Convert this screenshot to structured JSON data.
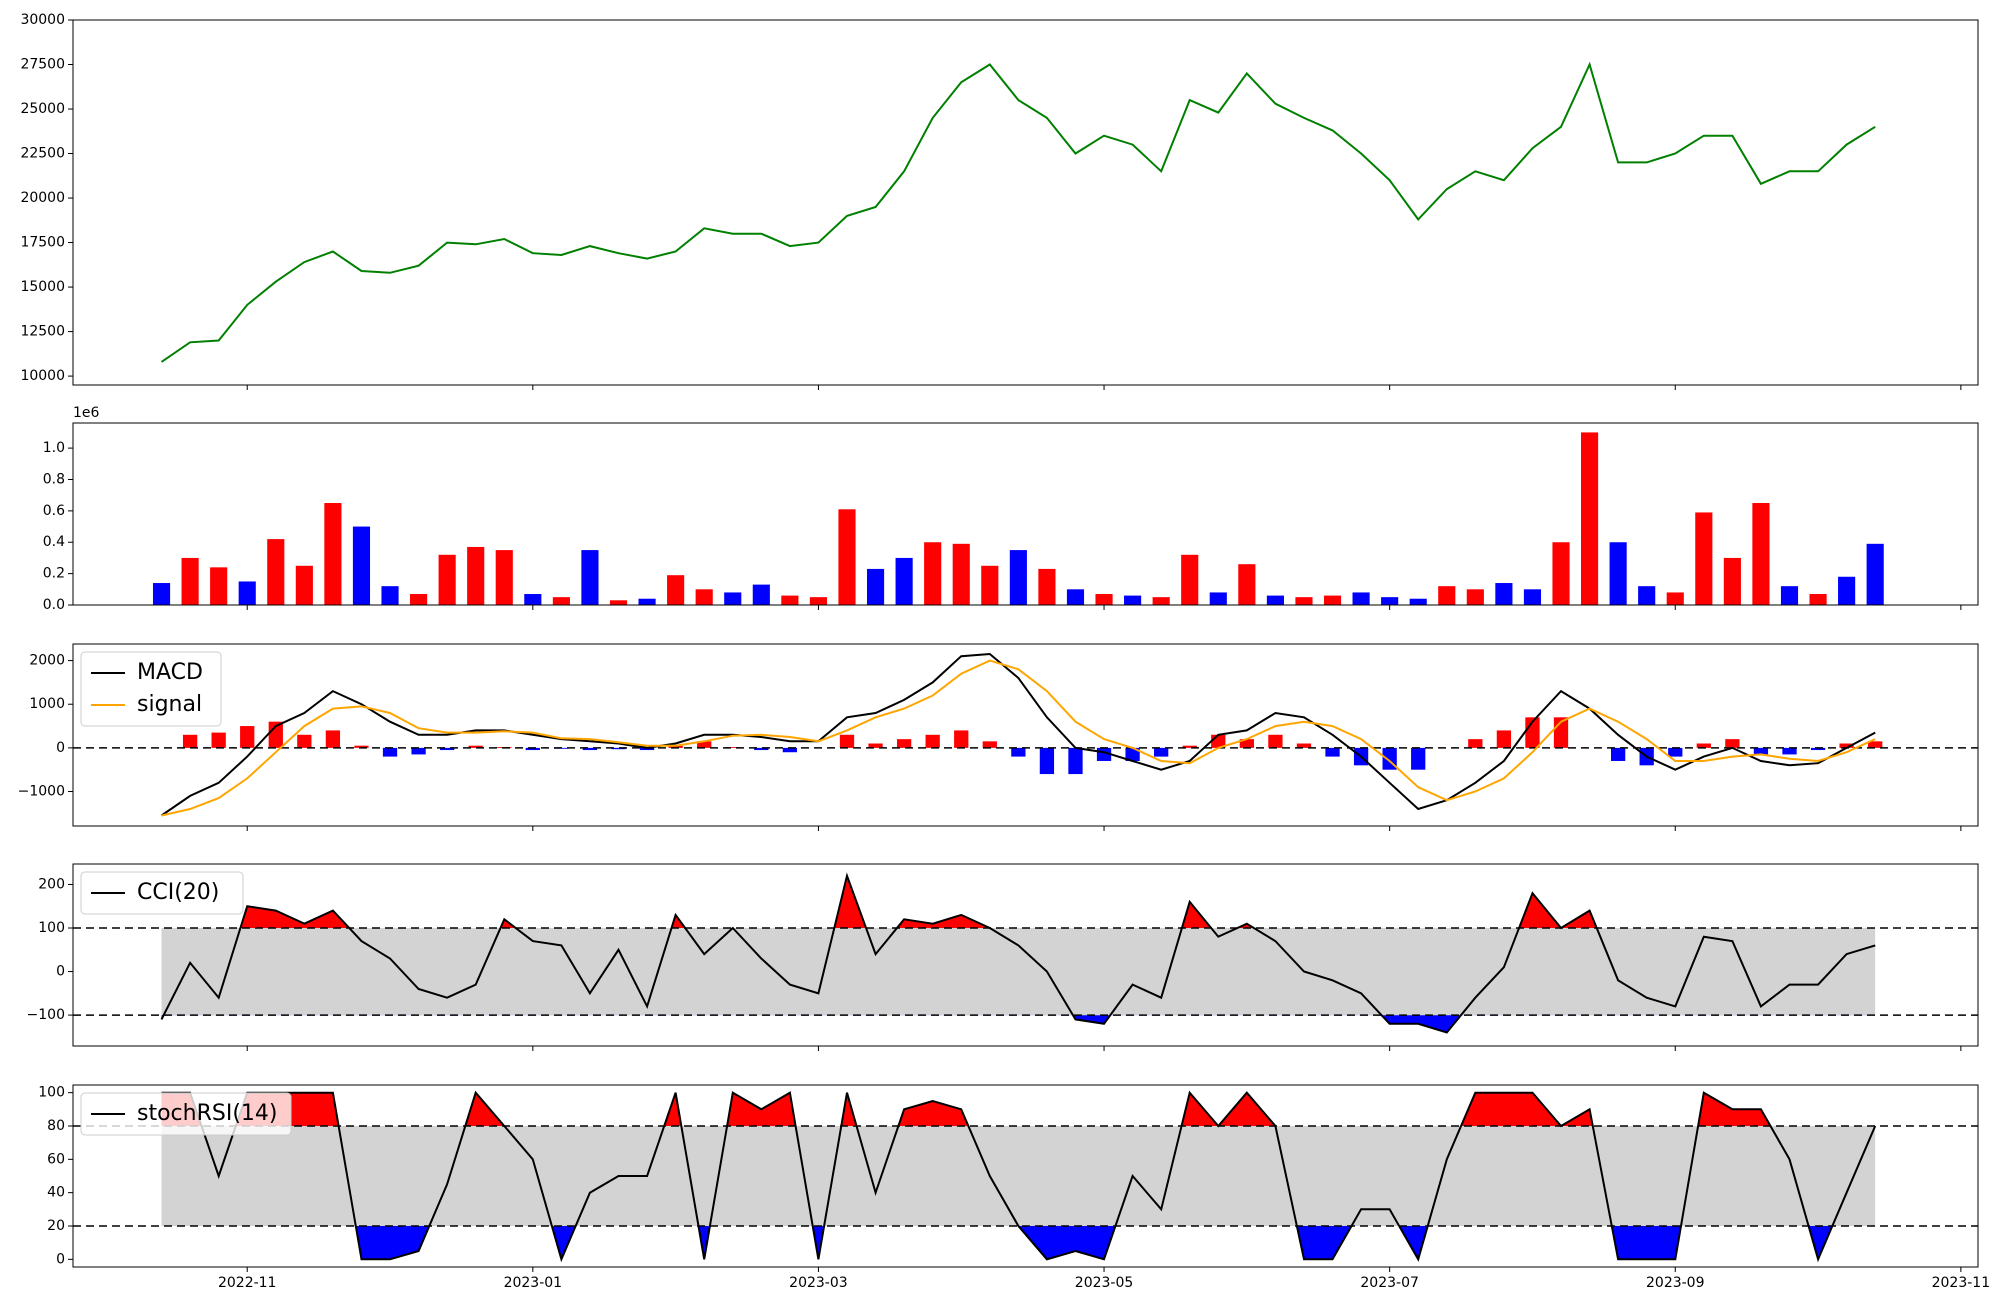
{
  "chart_data": [
    {
      "type": "line",
      "x": [
        -0.6,
        -0.4,
        -0.2,
        0,
        0.2,
        0.4,
        0.6,
        0.8,
        1,
        1.2,
        1.4,
        1.6,
        1.8,
        2,
        2.2,
        2.4,
        2.6,
        2.8,
        3,
        3.2,
        3.4,
        3.6,
        3.8,
        4,
        4.2,
        4.4,
        4.6,
        4.8,
        5,
        5.2,
        5.4,
        5.6,
        5.8,
        6,
        6.2,
        6.4,
        6.6,
        6.8,
        7,
        7.2,
        7.4,
        7.6,
        7.8,
        8,
        8.2,
        8.4,
        8.6,
        8.8,
        9,
        9.2,
        9.4,
        9.6,
        9.8,
        10,
        10.2,
        10.4,
        10.6,
        10.8,
        11,
        11.2,
        11.4
      ],
      "series": [
        {
          "color": "#008000",
          "values": [
            10800,
            11900,
            12000,
            14000,
            15300,
            16400,
            17000,
            15900,
            15800,
            16200,
            17500,
            17400,
            17700,
            16900,
            16800,
            17300,
            16900,
            16600,
            17000,
            18300,
            18000,
            18000,
            17300,
            17500,
            19000,
            19500,
            21500,
            24500,
            26500,
            27500,
            25500,
            24500,
            22500,
            23500,
            23000,
            21500,
            25500,
            24800,
            27000,
            25300,
            24500,
            23800,
            22500,
            21000,
            18800,
            20500,
            21500,
            21000,
            22800,
            24000,
            27500,
            22000,
            22000,
            22500,
            23500,
            23500,
            20800,
            21500,
            21500,
            23000,
            24000
          ]
        }
      ],
      "xlim": [
        -1.22,
        12.12
      ],
      "ylim": [
        9500,
        30000
      ],
      "yticks": [
        10000,
        12500,
        15000,
        17500,
        20000,
        22500,
        25000,
        27500,
        30000
      ]
    },
    {
      "type": "bar",
      "x": [
        -0.6,
        -0.4,
        -0.2,
        0,
        0.2,
        0.4,
        0.6,
        0.8,
        1,
        1.2,
        1.4,
        1.6,
        1.8,
        2,
        2.2,
        2.4,
        2.6,
        2.8,
        3,
        3.2,
        3.4,
        3.6,
        3.8,
        4,
        4.2,
        4.4,
        4.6,
        4.8,
        5,
        5.2,
        5.4,
        5.6,
        5.8,
        6,
        6.2,
        6.4,
        6.6,
        6.8,
        7,
        7.2,
        7.4,
        7.6,
        7.8,
        8,
        8.2,
        8.4,
        8.6,
        8.8,
        9,
        9.2,
        9.4,
        9.6,
        9.8,
        10,
        10.2,
        10.4,
        10.6,
        10.8,
        11,
        11.2,
        11.4
      ],
      "values": [
        0.14,
        0.3,
        0.24,
        0.15,
        0.42,
        0.25,
        0.65,
        0.5,
        0.12,
        0.07,
        0.32,
        0.37,
        0.35,
        0.07,
        0.05,
        0.35,
        0.03,
        0.04,
        0.19,
        0.1,
        0.08,
        0.13,
        0.06,
        0.05,
        0.61,
        0.23,
        0.3,
        0.4,
        0.39,
        0.25,
        0.35,
        0.23,
        0.1,
        0.07,
        0.06,
        0.05,
        0.32,
        0.08,
        0.26,
        0.06,
        0.05,
        0.06,
        0.08,
        0.05,
        0.04,
        0.12,
        0.1,
        0.14,
        0.1,
        0.4,
        1.1,
        0.4,
        0.12,
        0.08,
        0.59,
        0.3,
        0.65,
        0.12,
        0.07,
        0.18,
        0.39
      ],
      "colors": [
        "blue",
        "red",
        "red",
        "blue",
        "red",
        "red",
        "red",
        "blue",
        "blue",
        "red",
        "red",
        "red",
        "red",
        "blue",
        "red",
        "blue",
        "red",
        "blue",
        "red",
        "red",
        "blue",
        "blue",
        "red",
        "red",
        "red",
        "blue",
        "blue",
        "red",
        "red",
        "red",
        "blue",
        "red",
        "blue",
        "red",
        "blue",
        "red",
        "red",
        "blue",
        "red",
        "blue",
        "red",
        "red",
        "blue",
        "blue",
        "blue",
        "red",
        "red",
        "blue",
        "blue",
        "red",
        "red",
        "blue",
        "blue",
        "red",
        "red",
        "red",
        "red",
        "blue",
        "red",
        "blue",
        "blue"
      ],
      "y_scale_label": "1e6",
      "xlim": [
        -1.22,
        12.12
      ],
      "ylim": [
        0,
        1.16
      ],
      "yticks": [
        {
          "value": 0,
          "label": "0.0"
        },
        0.2,
        0.4,
        0.6,
        0.8,
        {
          "value": 1,
          "label": "1.0"
        }
      ]
    },
    {
      "type": "macd",
      "x": [
        -0.6,
        -0.4,
        -0.2,
        0,
        0.2,
        0.4,
        0.6,
        0.8,
        1,
        1.2,
        1.4,
        1.6,
        1.8,
        2,
        2.2,
        2.4,
        2.6,
        2.8,
        3,
        3.2,
        3.4,
        3.6,
        3.8,
        4,
        4.2,
        4.4,
        4.6,
        4.8,
        5,
        5.2,
        5.4,
        5.6,
        5.8,
        6,
        6.2,
        6.4,
        6.6,
        6.8,
        7,
        7.2,
        7.4,
        7.6,
        7.8,
        8,
        8.2,
        8.4,
        8.6,
        8.8,
        9,
        9.2,
        9.4,
        9.6,
        9.8,
        10,
        10.2,
        10.4,
        10.6,
        10.8,
        11,
        11.2,
        11.4
      ],
      "series": [
        {
          "name": "MACD",
          "color": "#000000",
          "values": [
            -1550,
            -1100,
            -800,
            -200,
            500,
            800,
            1300,
            1000,
            600,
            300,
            300,
            400,
            400,
            300,
            200,
            150,
            100,
            0,
            100,
            300,
            300,
            250,
            150,
            150,
            700,
            800,
            1100,
            1500,
            2100,
            2150,
            1600,
            700,
            0,
            -100,
            -300,
            -500,
            -300,
            300,
            400,
            800,
            700,
            300,
            -200,
            -800,
            -1400,
            -1200,
            -800,
            -300,
            600,
            1300,
            900,
            300,
            -200,
            -500,
            -200,
            0,
            -300,
            -400,
            -350,
            0,
            350
          ]
        },
        {
          "name": "signal",
          "color": "#ffa500",
          "values": [
            -1550,
            -1400,
            -1150,
            -700,
            -100,
            500,
            900,
            950,
            800,
            450,
            350,
            350,
            380,
            350,
            220,
            200,
            130,
            50,
            50,
            150,
            280,
            300,
            250,
            150,
            400,
            700,
            900,
            1200,
            1700,
            2000,
            1800,
            1300,
            600,
            200,
            0,
            -300,
            -350,
            0,
            200,
            500,
            600,
            500,
            200,
            -300,
            -900,
            -1200,
            -1000,
            -700,
            -100,
            600,
            900,
            600,
            200,
            -300,
            -300,
            -200,
            -150,
            -250,
            -300,
            -100,
            200
          ]
        }
      ],
      "histogram": [
        0,
        300,
        350,
        500,
        600,
        300,
        400,
        50,
        -200,
        -150,
        -50,
        50,
        20,
        -50,
        -20,
        -50,
        -30,
        -50,
        50,
        150,
        20,
        -50,
        -100,
        0,
        300,
        100,
        200,
        300,
        400,
        150,
        -200,
        -600,
        -600,
        -300,
        -300,
        -200,
        50,
        300,
        200,
        300,
        100,
        -200,
        -400,
        -500,
        -500,
        0,
        200,
        400,
        700,
        700,
        0,
        -300,
        -400,
        -200,
        100,
        200,
        -150,
        -150,
        -50,
        100,
        150
      ],
      "pos_color": "#ff0000",
      "neg_color": "#0000ff",
      "zero_line": true,
      "xlim": [
        -1.22,
        12.12
      ],
      "ylim": [
        -1790,
        2380
      ],
      "yticks": [
        {
          "value": -1000,
          "label": "−1000"
        },
        0,
        1000,
        2000
      ]
    },
    {
      "type": "oscillator",
      "x": [
        -0.6,
        -0.4,
        -0.2,
        0,
        0.2,
        0.4,
        0.6,
        0.8,
        1,
        1.2,
        1.4,
        1.6,
        1.8,
        2,
        2.2,
        2.4,
        2.6,
        2.8,
        3,
        3.2,
        3.4,
        3.6,
        3.8,
        4,
        4.2,
        4.4,
        4.6,
        4.8,
        5,
        5.2,
        5.4,
        5.6,
        5.8,
        6,
        6.2,
        6.4,
        6.6,
        6.8,
        7,
        7.2,
        7.4,
        7.6,
        7.8,
        8,
        8.2,
        8.4,
        8.6,
        8.8,
        9,
        9.2,
        9.4,
        9.6,
        9.8,
        10,
        10.2,
        10.4,
        10.6,
        10.8,
        11,
        11.2,
        11.4
      ],
      "series": [
        {
          "name": "CCI(20)",
          "color": "#000000",
          "values": [
            -110,
            20,
            -60,
            150,
            140,
            110,
            140,
            70,
            30,
            -40,
            -60,
            -30,
            120,
            70,
            60,
            -50,
            50,
            -80,
            130,
            40,
            100,
            30,
            -30,
            -50,
            220,
            40,
            120,
            110,
            130,
            100,
            60,
            0,
            -110,
            -120,
            -30,
            -60,
            160,
            80,
            110,
            70,
            0,
            -20,
            -50,
            -120,
            -120,
            -140,
            -60,
            10,
            180,
            100,
            140,
            -20,
            -60,
            -80,
            80,
            70,
            -80,
            -30,
            -30,
            40,
            60
          ]
        }
      ],
      "levels": [
        -100,
        100
      ],
      "band_color": "#d3d3d3",
      "high_color": "#ff0000",
      "low_color": "#0000ff",
      "xlim": [
        -1.22,
        12.12
      ],
      "ylim": [
        -171,
        247
      ],
      "yticks": [
        {
          "value": -100,
          "label": "−100"
        },
        0,
        100,
        200
      ]
    },
    {
      "type": "oscillator",
      "x": [
        -0.6,
        -0.4,
        -0.2,
        0,
        0.2,
        0.4,
        0.6,
        0.8,
        1,
        1.2,
        1.4,
        1.6,
        1.8,
        2,
        2.2,
        2.4,
        2.6,
        2.8,
        3,
        3.2,
        3.4,
        3.6,
        3.8,
        4,
        4.2,
        4.4,
        4.6,
        4.8,
        5,
        5.2,
        5.4,
        5.6,
        5.8,
        6,
        6.2,
        6.4,
        6.6,
        6.8,
        7,
        7.2,
        7.4,
        7.6,
        7.8,
        8,
        8.2,
        8.4,
        8.6,
        8.8,
        9,
        9.2,
        9.4,
        9.6,
        9.8,
        10,
        10.2,
        10.4,
        10.6,
        10.8,
        11,
        11.2,
        11.4
      ],
      "series": [
        {
          "name": "stochRSI(14)",
          "color": "#000000",
          "values": [
            100,
            100,
            50,
            100,
            100,
            100,
            100,
            0,
            0,
            5,
            45,
            100,
            80,
            60,
            0,
            40,
            50,
            50,
            100,
            0,
            100,
            90,
            100,
            0,
            100,
            40,
            90,
            95,
            90,
            50,
            20,
            0,
            5,
            0,
            50,
            30,
            100,
            80,
            100,
            80,
            0,
            0,
            30,
            30,
            0,
            60,
            100,
            100,
            100,
            80,
            90,
            0,
            0,
            0,
            100,
            90,
            90,
            60,
            0,
            40,
            80
          ]
        }
      ],
      "levels": [
        20,
        80
      ],
      "band_color": "#d3d3d3",
      "high_color": "#ff0000",
      "low_color": "#0000ff",
      "xlim": [
        -1.22,
        12.12
      ],
      "ylim": [
        -4.6,
        104.6
      ],
      "yticks": [
        0,
        20,
        40,
        60,
        80,
        100
      ],
      "xticks": [
        {
          "value": 0,
          "label": "2022-11"
        },
        {
          "value": 2,
          "label": "2023-01"
        },
        {
          "value": 4,
          "label": "2023-03"
        },
        {
          "value": 6,
          "label": "2023-05"
        },
        {
          "value": 8,
          "label": "2023-07"
        },
        {
          "value": 10,
          "label": "2023-09"
        },
        {
          "value": 12,
          "label": "2023-11"
        }
      ]
    }
  ]
}
